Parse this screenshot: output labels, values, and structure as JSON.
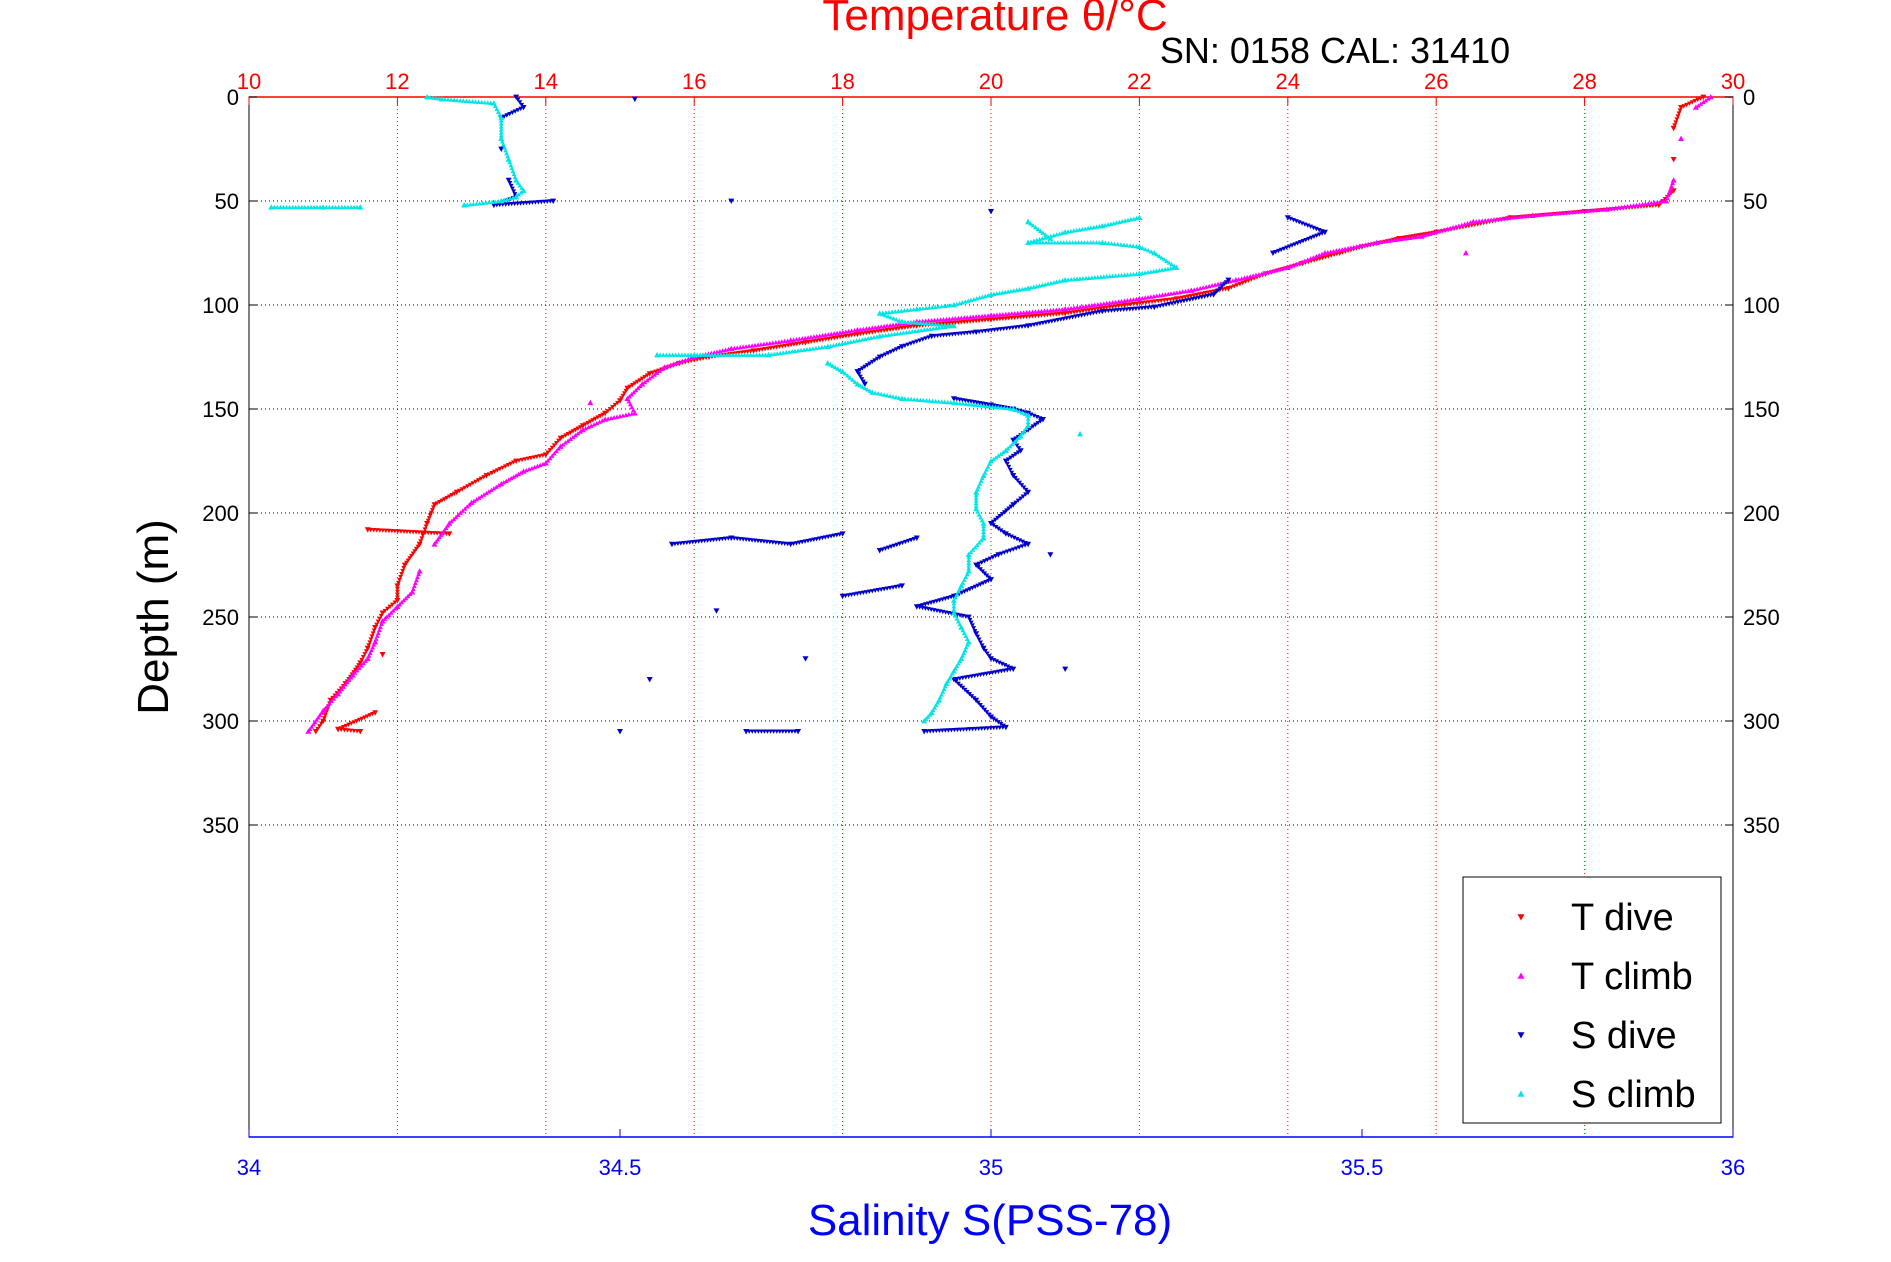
{
  "chart_data": {
    "type": "scatter",
    "title": "Temperature θ/°C",
    "subtitle": "SN: 0158  CAL: 31410",
    "xlabel_top": "Temperature θ/°C",
    "xlabel_bottom": "Salinity S(PSS-78)",
    "ylabel": "Depth (m)",
    "ylim": [
      0,
      500
    ],
    "yreverse": true,
    "y_ticks": [
      0,
      50,
      100,
      150,
      200,
      250,
      300,
      350
    ],
    "x_top_lim": [
      10,
      30
    ],
    "x_top_ticks": [
      10,
      12,
      14,
      16,
      18,
      20,
      22,
      24,
      26,
      28,
      30
    ],
    "x_bottom_lim": [
      34,
      36
    ],
    "x_bottom_ticks": [
      "34",
      "34.5",
      "35",
      "35.5",
      "36"
    ],
    "grid": true,
    "legend_position": "bottom-right",
    "colors": {
      "temperature_axis": "#ff0000",
      "salinity_axis": "#0000ff",
      "t_dive": "#ff0000",
      "t_climb": "#ff00ff",
      "s_dive": "#0000cc",
      "s_climb": "#00e5e5"
    },
    "series": [
      {
        "name": "T dive",
        "axis": "temperature",
        "marker": "triangle-down",
        "points": [
          [
            29.6,
            0
          ],
          [
            29.3,
            5
          ],
          [
            29.2,
            15
          ],
          [
            29.2,
            30
          ],
          [
            29.2,
            45
          ],
          [
            29.0,
            52
          ],
          [
            28.0,
            55
          ],
          [
            27.0,
            58
          ],
          [
            26.0,
            65
          ],
          [
            25.5,
            68
          ],
          [
            25.0,
            72
          ],
          [
            24.7,
            75
          ],
          [
            24.2,
            80
          ],
          [
            23.7,
            85
          ],
          [
            23.2,
            92
          ],
          [
            22.5,
            97
          ],
          [
            21.8,
            100
          ],
          [
            21.0,
            104
          ],
          [
            20.0,
            107
          ],
          [
            19.0,
            110
          ],
          [
            18.2,
            114
          ],
          [
            17.5,
            118
          ],
          [
            16.8,
            122
          ],
          [
            16.2,
            125
          ],
          [
            15.8,
            128
          ],
          [
            15.4,
            133
          ],
          [
            15.1,
            140
          ],
          [
            15.0,
            146
          ],
          [
            14.8,
            152
          ],
          [
            14.5,
            158
          ],
          [
            14.2,
            164
          ],
          [
            14.0,
            172
          ],
          [
            13.6,
            175
          ],
          [
            13.2,
            182
          ],
          [
            12.8,
            190
          ],
          [
            12.5,
            196
          ],
          [
            12.4,
            205
          ],
          [
            12.3,
            215
          ],
          [
            12.1,
            225
          ],
          [
            12.0,
            235
          ],
          [
            12.0,
            242
          ],
          [
            11.8,
            248
          ],
          [
            11.7,
            255
          ],
          [
            11.6,
            265
          ],
          [
            11.5,
            272
          ],
          [
            11.3,
            282
          ],
          [
            11.1,
            290
          ],
          [
            11.0,
            300
          ],
          [
            10.9,
            305
          ],
          [
            11.6,
            208
          ],
          [
            12.7,
            210
          ],
          [
            11.8,
            268
          ],
          [
            11.7,
            296
          ],
          [
            11.2,
            304
          ],
          [
            11.5,
            305
          ]
        ]
      },
      {
        "name": "T climb",
        "axis": "temperature",
        "marker": "triangle-up",
        "points": [
          [
            29.7,
            0
          ],
          [
            29.5,
            5
          ],
          [
            29.3,
            20
          ],
          [
            29.2,
            40
          ],
          [
            29.1,
            50
          ],
          [
            28.3,
            54
          ],
          [
            27.3,
            57
          ],
          [
            26.5,
            60
          ],
          [
            25.8,
            67
          ],
          [
            25.2,
            70
          ],
          [
            24.5,
            75
          ],
          [
            24.0,
            82
          ],
          [
            23.3,
            88
          ],
          [
            22.7,
            93
          ],
          [
            22.0,
            97
          ],
          [
            21.0,
            102
          ],
          [
            20.0,
            105
          ],
          [
            19.0,
            108
          ],
          [
            18.2,
            112
          ],
          [
            17.3,
            117
          ],
          [
            16.5,
            121
          ],
          [
            16.0,
            125
          ],
          [
            15.6,
            130
          ],
          [
            15.3,
            138
          ],
          [
            15.1,
            145
          ],
          [
            15.2,
            152
          ],
          [
            14.8,
            155
          ],
          [
            14.5,
            160
          ],
          [
            14.2,
            168
          ],
          [
            14.0,
            176
          ],
          [
            13.7,
            180
          ],
          [
            13.4,
            186
          ],
          [
            13.0,
            195
          ],
          [
            12.7,
            205
          ],
          [
            12.5,
            215
          ],
          [
            12.3,
            228
          ],
          [
            12.2,
            238
          ],
          [
            12.0,
            245
          ],
          [
            11.8,
            252
          ],
          [
            11.7,
            262
          ],
          [
            11.6,
            270
          ],
          [
            11.4,
            278
          ],
          [
            11.2,
            287
          ],
          [
            11.0,
            295
          ],
          [
            10.8,
            305
          ],
          [
            14.6,
            147
          ],
          [
            26.4,
            75
          ]
        ]
      },
      {
        "name": "S dive",
        "axis": "salinity",
        "marker": "triangle-down",
        "points": [
          [
            34.36,
            0
          ],
          [
            34.37,
            5
          ],
          [
            34.34,
            10
          ],
          [
            34.34,
            25
          ],
          [
            34.35,
            40
          ],
          [
            34.36,
            48
          ],
          [
            34.33,
            52
          ],
          [
            34.41,
            50
          ],
          [
            34.52,
            1
          ],
          [
            34.65,
            50
          ],
          [
            35.0,
            55
          ],
          [
            35.4,
            58
          ],
          [
            35.45,
            65
          ],
          [
            35.38,
            75
          ],
          [
            35.32,
            88
          ],
          [
            35.3,
            95
          ],
          [
            35.22,
            101
          ],
          [
            35.15,
            103
          ],
          [
            35.05,
            110
          ],
          [
            34.98,
            113
          ],
          [
            34.92,
            115
          ],
          [
            34.88,
            120
          ],
          [
            34.85,
            125
          ],
          [
            34.82,
            132
          ],
          [
            34.83,
            138
          ],
          [
            34.95,
            145
          ],
          [
            35.0,
            148
          ],
          [
            35.03,
            150
          ],
          [
            35.05,
            152
          ],
          [
            35.07,
            155
          ],
          [
            35.05,
            160
          ],
          [
            35.03,
            165
          ],
          [
            35.04,
            170
          ],
          [
            35.02,
            175
          ],
          [
            35.03,
            182
          ],
          [
            35.05,
            190
          ],
          [
            35.03,
            196
          ],
          [
            35.0,
            205
          ],
          [
            35.02,
            210
          ],
          [
            35.05,
            215
          ],
          [
            35.01,
            220
          ],
          [
            34.98,
            225
          ],
          [
            35.0,
            232
          ],
          [
            34.95,
            240
          ],
          [
            34.9,
            245
          ],
          [
            34.97,
            250
          ],
          [
            34.98,
            258
          ],
          [
            34.99,
            265
          ],
          [
            35.0,
            270
          ],
          [
            35.03,
            275
          ],
          [
            34.95,
            280
          ],
          [
            34.98,
            290
          ],
          [
            35.0,
            298
          ],
          [
            35.02,
            303
          ],
          [
            34.91,
            305
          ],
          [
            34.8,
            210
          ],
          [
            34.73,
            215
          ],
          [
            34.65,
            212
          ],
          [
            34.57,
            215
          ],
          [
            34.63,
            247
          ],
          [
            34.54,
            280
          ],
          [
            34.5,
            305
          ],
          [
            34.67,
            305
          ],
          [
            34.74,
            305
          ],
          [
            34.75,
            270
          ],
          [
            34.9,
            212
          ],
          [
            34.85,
            218
          ],
          [
            34.8,
            240
          ],
          [
            34.88,
            235
          ],
          [
            35.08,
            220
          ],
          [
            35.1,
            275
          ]
        ]
      },
      {
        "name": "S climb",
        "axis": "salinity",
        "marker": "triangle-up",
        "points": [
          [
            34.24,
            0
          ],
          [
            34.26,
            1
          ],
          [
            34.33,
            3
          ],
          [
            34.34,
            10
          ],
          [
            34.34,
            20
          ],
          [
            34.35,
            30
          ],
          [
            34.36,
            40
          ],
          [
            34.37,
            45
          ],
          [
            34.36,
            48
          ],
          [
            34.34,
            50
          ],
          [
            34.29,
            52
          ],
          [
            34.15,
            53
          ],
          [
            34.1,
            53
          ],
          [
            34.03,
            53
          ],
          [
            35.2,
            58
          ],
          [
            35.15,
            62
          ],
          [
            35.1,
            65
          ],
          [
            35.05,
            70
          ],
          [
            35.15,
            70
          ],
          [
            35.2,
            72
          ],
          [
            35.22,
            75
          ],
          [
            35.25,
            82
          ],
          [
            35.2,
            85
          ],
          [
            35.1,
            88
          ],
          [
            35.05,
            92
          ],
          [
            35.0,
            95
          ],
          [
            34.95,
            100
          ],
          [
            34.9,
            102
          ],
          [
            34.85,
            104
          ],
          [
            34.88,
            108
          ],
          [
            34.95,
            110
          ],
          [
            34.85,
            115
          ],
          [
            34.78,
            120
          ],
          [
            34.7,
            124
          ],
          [
            34.6,
            124
          ],
          [
            34.55,
            124
          ],
          [
            34.78,
            128
          ],
          [
            34.8,
            132
          ],
          [
            34.82,
            138
          ],
          [
            34.84,
            142
          ],
          [
            34.88,
            145
          ],
          [
            34.95,
            147
          ],
          [
            35.03,
            150
          ],
          [
            35.05,
            153
          ],
          [
            35.05,
            158
          ],
          [
            35.04,
            163
          ],
          [
            35.02,
            170
          ],
          [
            35.0,
            175
          ],
          [
            34.99,
            182
          ],
          [
            34.98,
            190
          ],
          [
            34.98,
            198
          ],
          [
            34.99,
            205
          ],
          [
            34.99,
            212
          ],
          [
            34.97,
            220
          ],
          [
            34.97,
            228
          ],
          [
            34.96,
            235
          ],
          [
            34.95,
            242
          ],
          [
            34.95,
            248
          ],
          [
            34.96,
            255
          ],
          [
            34.97,
            262
          ],
          [
            34.96,
            270
          ],
          [
            34.95,
            276
          ],
          [
            34.94,
            282
          ],
          [
            34.93,
            290
          ],
          [
            34.92,
            296
          ],
          [
            34.91,
            300
          ],
          [
            35.12,
            162
          ],
          [
            35.05,
            60
          ],
          [
            35.08,
            68
          ]
        ]
      }
    ]
  }
}
